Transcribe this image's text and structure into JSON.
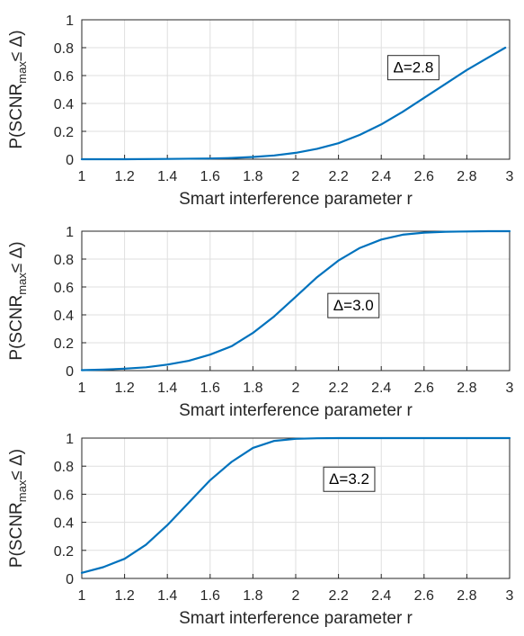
{
  "series_color": "#0072BD",
  "chart_data": [
    {
      "type": "line",
      "xlabel": "Smart interference parameter r",
      "ylabel_parts": [
        "P(SCNR",
        "max",
        "≤ Δ)"
      ],
      "xlim": [
        1,
        3
      ],
      "ylim": [
        0,
        1
      ],
      "xticks": [
        "1",
        "1.2",
        "1.4",
        "1.6",
        "1.8",
        "2",
        "2.2",
        "2.4",
        "2.6",
        "2.8",
        "3"
      ],
      "yticks": [
        "0",
        "0.2",
        "0.4",
        "0.6",
        "0.8",
        "1"
      ],
      "grid": true,
      "annotation": "Δ=2.8",
      "annotation_at": {
        "x": 2.55,
        "y": 0.66
      },
      "series": [
        {
          "x": [
            1.0,
            1.2,
            1.4,
            1.6,
            1.7,
            1.8,
            1.9,
            2.0,
            2.1,
            2.2,
            2.3,
            2.4,
            2.5,
            2.6,
            2.7,
            2.8,
            2.9,
            2.98
          ],
          "y": [
            0.0,
            0.0,
            0.002,
            0.005,
            0.009,
            0.016,
            0.027,
            0.046,
            0.075,
            0.115,
            0.175,
            0.25,
            0.34,
            0.44,
            0.54,
            0.64,
            0.73,
            0.8
          ]
        }
      ]
    },
    {
      "type": "line",
      "xlabel": "Smart interference parameter r",
      "ylabel_parts": [
        "P(SCNR",
        "max",
        "≤ Δ)"
      ],
      "xlim": [
        1,
        3
      ],
      "ylim": [
        0,
        1
      ],
      "xticks": [
        "1",
        "1.2",
        "1.4",
        "1.6",
        "1.8",
        "2",
        "2.2",
        "2.4",
        "2.6",
        "2.8",
        "3"
      ],
      "yticks": [
        "0",
        "0.2",
        "0.4",
        "0.6",
        "0.8",
        "1"
      ],
      "grid": true,
      "annotation": "Δ=3.0",
      "annotation_at": {
        "x": 2.27,
        "y": 0.47
      },
      "series": [
        {
          "x": [
            1.0,
            1.1,
            1.2,
            1.3,
            1.4,
            1.5,
            1.6,
            1.7,
            1.8,
            1.9,
            2.0,
            2.1,
            2.2,
            2.3,
            2.4,
            2.5,
            2.6,
            2.7,
            2.8,
            2.9,
            3.0
          ],
          "y": [
            0.003,
            0.007,
            0.014,
            0.024,
            0.043,
            0.07,
            0.115,
            0.175,
            0.27,
            0.39,
            0.53,
            0.67,
            0.79,
            0.88,
            0.94,
            0.975,
            0.99,
            0.996,
            0.998,
            1.0,
            1.0
          ]
        }
      ]
    },
    {
      "type": "line",
      "xlabel": "Smart interference parameter r",
      "ylabel_parts": [
        "P(SCNR",
        "max",
        "≤ Δ)"
      ],
      "xlim": [
        1,
        3
      ],
      "ylim": [
        0,
        1
      ],
      "xticks": [
        "1",
        "1.2",
        "1.4",
        "1.6",
        "1.8",
        "2",
        "2.2",
        "2.4",
        "2.6",
        "2.8",
        "3"
      ],
      "yticks": [
        "0",
        "0.2",
        "0.4",
        "0.6",
        "0.8",
        "1"
      ],
      "grid": true,
      "annotation": "Δ=3.2",
      "annotation_at": {
        "x": 2.25,
        "y": 0.71
      },
      "series": [
        {
          "x": [
            1.0,
            1.1,
            1.2,
            1.3,
            1.4,
            1.5,
            1.6,
            1.7,
            1.8,
            1.9,
            2.0,
            2.1,
            2.2,
            2.4,
            2.6,
            2.8,
            3.0
          ],
          "y": [
            0.04,
            0.08,
            0.14,
            0.24,
            0.38,
            0.54,
            0.7,
            0.83,
            0.93,
            0.98,
            0.995,
            0.999,
            1.0,
            1.0,
            1.0,
            1.0,
            1.0
          ]
        }
      ]
    }
  ]
}
